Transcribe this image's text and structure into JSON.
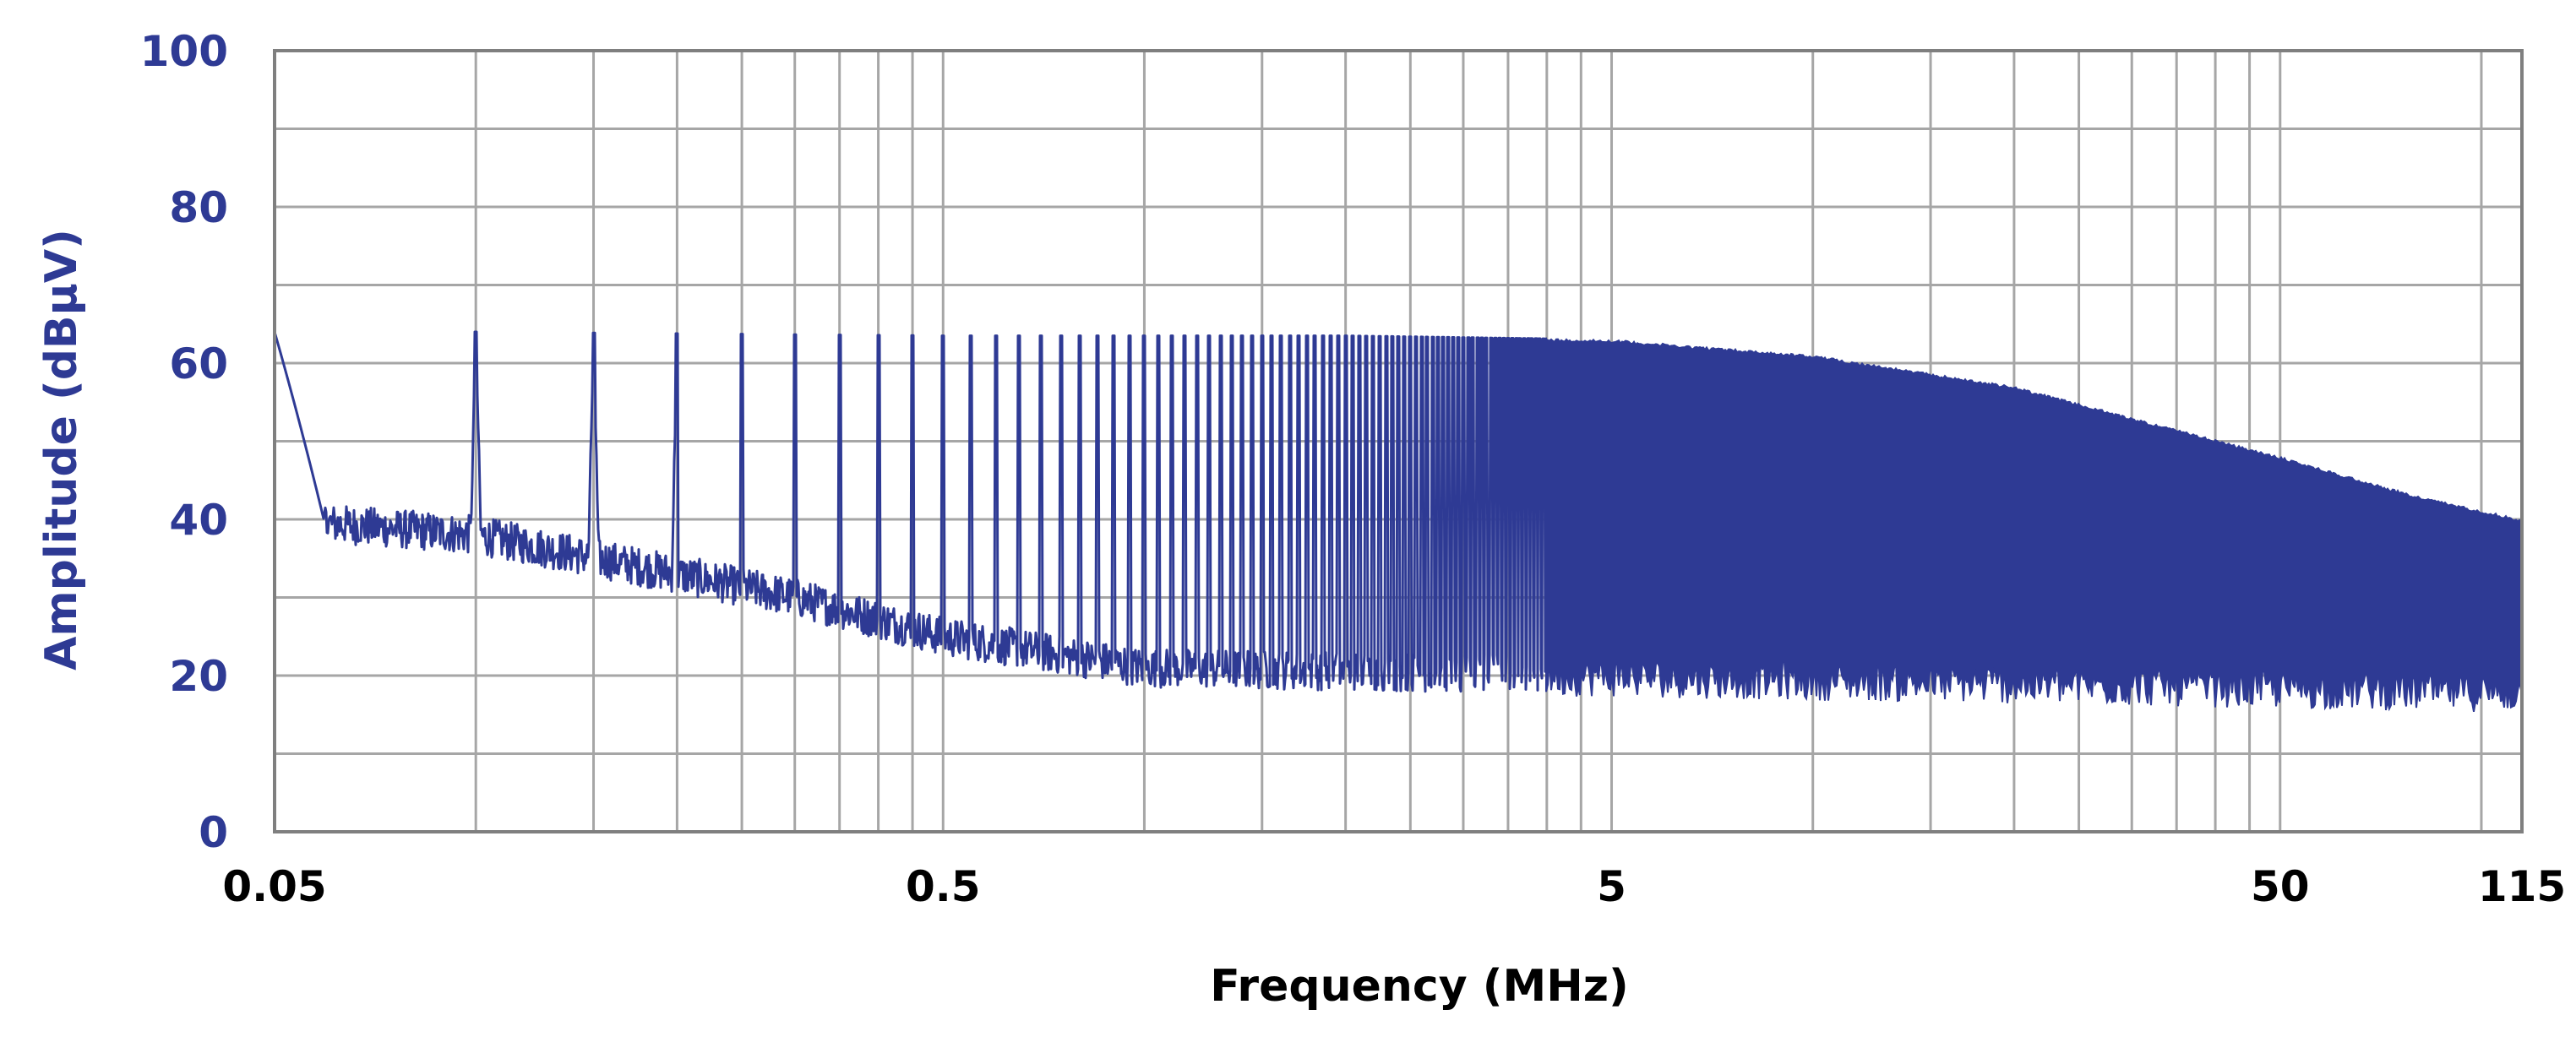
{
  "chart_data": {
    "type": "line",
    "title": "",
    "xlabel": "Frequency (MHz)",
    "ylabel": "Amplitude (dBµV)",
    "x_scale": "log",
    "xlim": [
      0.05,
      115
    ],
    "ylim": [
      0,
      100
    ],
    "grid": true,
    "legend": "none",
    "x_tick_labels": [
      {
        "value": 0.05,
        "label": "0.05"
      },
      {
        "value": 0.5,
        "label": "0.5"
      },
      {
        "value": 5,
        "label": "5"
      },
      {
        "value": 50,
        "label": "50"
      },
      {
        "value": 115,
        "label": "115"
      }
    ],
    "x_minor_grid": [
      0.1,
      0.15,
      0.2,
      0.25,
      0.3,
      0.35,
      0.4,
      0.45,
      1,
      1.5,
      2,
      2.5,
      3,
      3.5,
      4,
      4.5,
      10,
      15,
      20,
      25,
      30,
      35,
      40,
      45,
      100
    ],
    "y_ticks": [
      0,
      20,
      40,
      60,
      80,
      100
    ],
    "y_tick_labels": [
      "0",
      "20",
      "40",
      "60",
      "80",
      "100"
    ],
    "series": [
      {
        "color": "#2e3a94",
        "description_points": {
          "harmonic_spacing_mhz": 0.05,
          "peak_envelope": [
            {
              "x": 0.05,
              "y": 64
            },
            {
              "x": 0.1,
              "y": 64
            },
            {
              "x": 0.5,
              "y": 63.5
            },
            {
              "x": 2,
              "y": 63.5
            },
            {
              "x": 5,
              "y": 63
            },
            {
              "x": 10,
              "y": 61
            },
            {
              "x": 20,
              "y": 57
            },
            {
              "x": 30,
              "y": 53
            },
            {
              "x": 50,
              "y": 48
            },
            {
              "x": 80,
              "y": 43
            },
            {
              "x": 115,
              "y": 40
            }
          ],
          "noise_floor": [
            {
              "x": 0.05,
              "y": 40
            },
            {
              "x": 0.1,
              "y": 38
            },
            {
              "x": 0.2,
              "y": 33
            },
            {
              "x": 0.3,
              "y": 30
            },
            {
              "x": 0.5,
              "y": 25
            },
            {
              "x": 1,
              "y": 21
            },
            {
              "x": 5,
              "y": 20
            },
            {
              "x": 115,
              "y": 18
            }
          ]
        }
      }
    ],
    "colors": {
      "series": "#2e3a94",
      "axis_text": "#2e3a94",
      "grid": "#a6a6a6",
      "frame": "#7f7f7f"
    }
  }
}
